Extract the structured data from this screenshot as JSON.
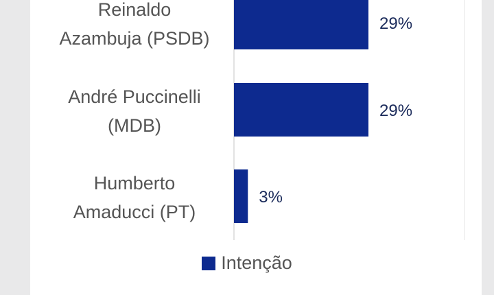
{
  "chart_data": {
    "type": "bar",
    "orientation": "horizontal",
    "categories": [
      [
        "Reinaldo",
        "Azambuja (PSDB)"
      ],
      [
        "André Puccinelli",
        "(MDB)"
      ],
      [
        "Humberto",
        "Amaducci (PT)"
      ]
    ],
    "series": [
      {
        "name": "Intenção",
        "values": [
          29,
          29,
          3
        ],
        "labels": [
          "29%",
          "29%",
          "3%"
        ]
      }
    ],
    "xlim": [
      0,
      29
    ],
    "grid": false,
    "legend": "bottom",
    "title": "",
    "xlabel": "",
    "ylabel": ""
  },
  "colors": {
    "bar": "#0d2a8f",
    "background": "#e9e9ea",
    "panel": "#ffffff"
  }
}
